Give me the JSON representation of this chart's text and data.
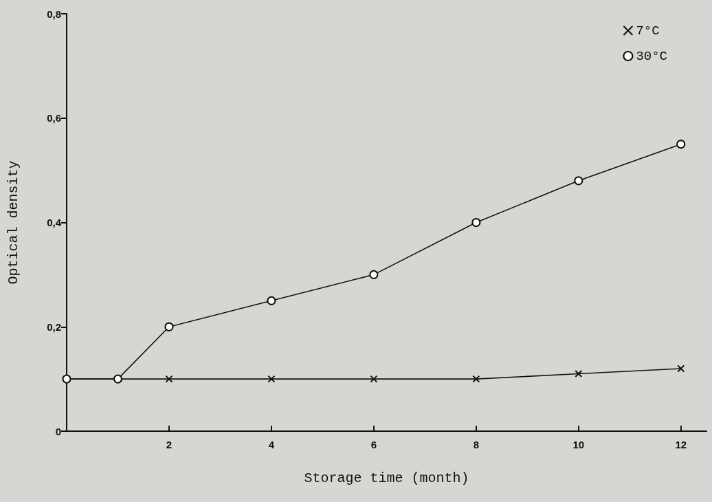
{
  "chart_data": {
    "type": "line",
    "xlabel": "Storage time (month)",
    "ylabel": "Optical density",
    "xlim": [
      0,
      12.5
    ],
    "xticks": [
      2,
      4,
      6,
      8,
      10,
      12
    ],
    "ylim": [
      0,
      0.8
    ],
    "yticks": [
      0,
      {
        "value": 0.2,
        "label": "0,2"
      },
      {
        "value": 0.4,
        "label": "0,4"
      },
      {
        "value": 0.6,
        "label": "0,6"
      },
      {
        "value": 0.8,
        "label": "0,8"
      }
    ],
    "series": [
      {
        "name": "7°C",
        "color": "#111111",
        "marker": "cross",
        "x": [
          0,
          2,
          4,
          6,
          8,
          10,
          12
        ],
        "values": [
          0.1,
          0.1,
          0.1,
          0.1,
          0.1,
          0.11,
          0.12
        ]
      },
      {
        "name": "30°C",
        "color": "#111111",
        "marker": "circle",
        "x": [
          0,
          1,
          2,
          4,
          6,
          8,
          10,
          12
        ],
        "values": [
          0.1,
          0.1,
          0.2,
          0.25,
          0.3,
          0.4,
          0.48,
          0.55
        ]
      }
    ],
    "legend": "top right",
    "grid": false,
    "line_style": "solid"
  }
}
